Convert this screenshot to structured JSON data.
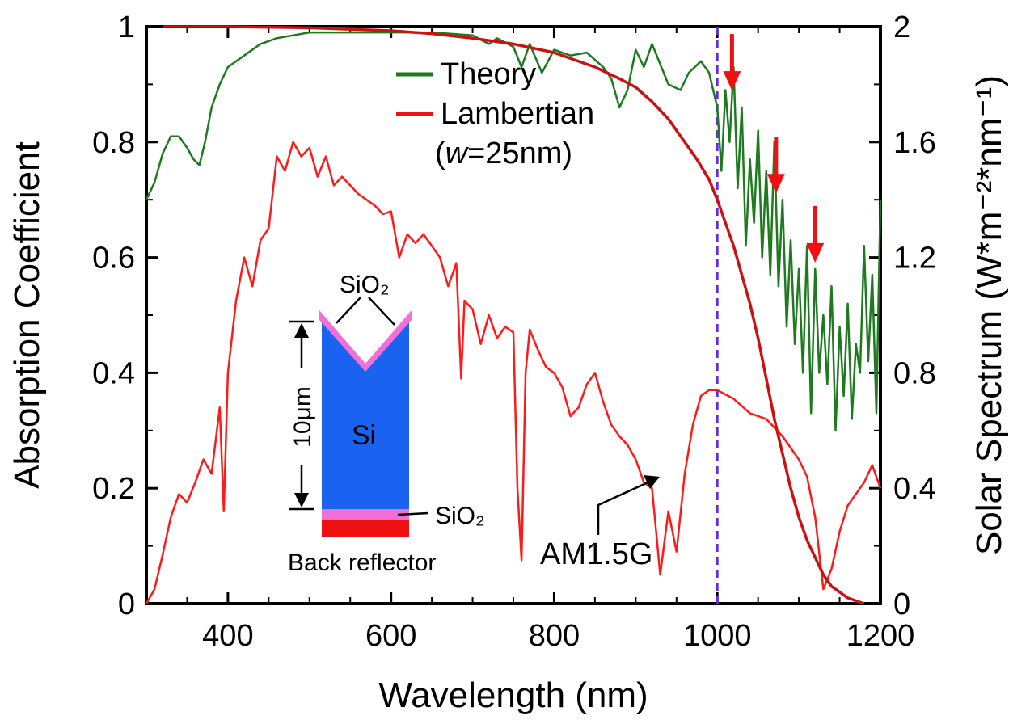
{
  "chart_data": {
    "type": "line",
    "xlabel": "Wavelength (nm)",
    "ylabel_left": "Absorption Coefficient",
    "ylabel_right": "Solar Spectrum (W*m⁻²*nm⁻¹)",
    "xlim": [
      300,
      1200
    ],
    "ylim_left": [
      0,
      1
    ],
    "ylim_right": [
      0,
      2
    ],
    "xticks": [
      "400",
      "600",
      "800",
      "1000",
      "1200"
    ],
    "yticks_left": [
      "0",
      "0.2",
      "0.4",
      "0.6",
      "0.8",
      "1"
    ],
    "yticks_right": [
      "0",
      "0.4",
      "0.8",
      "1.2",
      "1.6",
      "2"
    ],
    "legend": {
      "theory": "Theory",
      "lambertian": "Lambertian",
      "note_w": "w",
      "note_value": "=25nm"
    },
    "series": [
      {
        "name": "Theory",
        "color": "#1e7a1e",
        "axis": "left",
        "points": [
          [
            300,
            0.7
          ],
          [
            310,
            0.73
          ],
          [
            320,
            0.78
          ],
          [
            330,
            0.81
          ],
          [
            340,
            0.81
          ],
          [
            350,
            0.79
          ],
          [
            358,
            0.77
          ],
          [
            365,
            0.76
          ],
          [
            372,
            0.8
          ],
          [
            380,
            0.86
          ],
          [
            390,
            0.9
          ],
          [
            400,
            0.93
          ],
          [
            420,
            0.95
          ],
          [
            440,
            0.97
          ],
          [
            460,
            0.98
          ],
          [
            500,
            0.99
          ],
          [
            550,
            0.99
          ],
          [
            600,
            0.99
          ],
          [
            650,
            0.99
          ],
          [
            700,
            0.985
          ],
          [
            720,
            0.97
          ],
          [
            730,
            0.98
          ],
          [
            750,
            0.965
          ],
          [
            760,
            0.93
          ],
          [
            770,
            0.97
          ],
          [
            785,
            0.92
          ],
          [
            800,
            0.96
          ],
          [
            820,
            0.95
          ],
          [
            840,
            0.955
          ],
          [
            860,
            0.93
          ],
          [
            870,
            0.91
          ],
          [
            880,
            0.86
          ],
          [
            890,
            0.89
          ],
          [
            900,
            0.96
          ],
          [
            910,
            0.93
          ],
          [
            920,
            0.97
          ],
          [
            940,
            0.9
          ],
          [
            955,
            0.89
          ],
          [
            965,
            0.92
          ],
          [
            980,
            0.94
          ],
          [
            990,
            0.92
          ],
          [
            1000,
            0.86
          ],
          [
            1005,
            0.75
          ],
          [
            1010,
            0.89
          ],
          [
            1015,
            0.8
          ],
          [
            1020,
            0.93
          ],
          [
            1025,
            0.72
          ],
          [
            1030,
            0.86
          ],
          [
            1035,
            0.62
          ],
          [
            1040,
            0.77
          ],
          [
            1045,
            0.66
          ],
          [
            1050,
            0.82
          ],
          [
            1055,
            0.6
          ],
          [
            1060,
            0.75
          ],
          [
            1065,
            0.57
          ],
          [
            1070,
            0.8
          ],
          [
            1075,
            0.55
          ],
          [
            1080,
            0.7
          ],
          [
            1085,
            0.48
          ],
          [
            1090,
            0.63
          ],
          [
            1095,
            0.45
          ],
          [
            1100,
            0.58
          ],
          [
            1105,
            0.4
          ],
          [
            1110,
            0.62
          ],
          [
            1115,
            0.33
          ],
          [
            1120,
            0.58
          ],
          [
            1125,
            0.4
          ],
          [
            1130,
            0.5
          ],
          [
            1135,
            0.38
          ],
          [
            1140,
            0.55
          ],
          [
            1145,
            0.3
          ],
          [
            1150,
            0.48
          ],
          [
            1155,
            0.36
          ],
          [
            1160,
            0.52
          ],
          [
            1165,
            0.32
          ],
          [
            1170,
            0.45
          ],
          [
            1175,
            0.4
          ],
          [
            1180,
            0.62
          ],
          [
            1185,
            0.42
          ],
          [
            1190,
            0.57
          ],
          [
            1195,
            0.33
          ],
          [
            1200,
            0.7
          ]
        ]
      },
      {
        "name": "Lambertian",
        "color": "#cc1111",
        "axis": "left",
        "points": [
          [
            320,
            1.0
          ],
          [
            400,
            1.0
          ],
          [
            500,
            0.998
          ],
          [
            600,
            0.993
          ],
          [
            650,
            0.988
          ],
          [
            700,
            0.98
          ],
          [
            750,
            0.97
          ],
          [
            800,
            0.955
          ],
          [
            850,
            0.93
          ],
          [
            880,
            0.91
          ],
          [
            900,
            0.895
          ],
          [
            920,
            0.87
          ],
          [
            940,
            0.84
          ],
          [
            960,
            0.8
          ],
          [
            975,
            0.77
          ],
          [
            990,
            0.735
          ],
          [
            1000,
            0.7
          ],
          [
            1010,
            0.66
          ],
          [
            1020,
            0.62
          ],
          [
            1030,
            0.57
          ],
          [
            1040,
            0.52
          ],
          [
            1050,
            0.46
          ],
          [
            1060,
            0.39
          ],
          [
            1070,
            0.32
          ],
          [
            1080,
            0.26
          ],
          [
            1090,
            0.2
          ],
          [
            1100,
            0.15
          ],
          [
            1110,
            0.11
          ],
          [
            1120,
            0.08
          ],
          [
            1130,
            0.05
          ],
          [
            1140,
            0.03
          ],
          [
            1160,
            0.01
          ],
          [
            1180,
            0.0
          ]
        ]
      },
      {
        "name": "AM1.5G",
        "color": "#ff1a1a",
        "axis": "right",
        "points": [
          [
            300,
            0.0
          ],
          [
            310,
            0.05
          ],
          [
            320,
            0.17
          ],
          [
            330,
            0.3
          ],
          [
            340,
            0.38
          ],
          [
            350,
            0.35
          ],
          [
            360,
            0.42
          ],
          [
            370,
            0.5
          ],
          [
            380,
            0.45
          ],
          [
            390,
            0.68
          ],
          [
            395,
            0.32
          ],
          [
            400,
            0.8
          ],
          [
            410,
            1.05
          ],
          [
            420,
            1.2
          ],
          [
            430,
            1.1
          ],
          [
            440,
            1.26
          ],
          [
            450,
            1.3
          ],
          [
            460,
            1.55
          ],
          [
            470,
            1.5
          ],
          [
            480,
            1.6
          ],
          [
            490,
            1.55
          ],
          [
            500,
            1.58
          ],
          [
            510,
            1.48
          ],
          [
            520,
            1.55
          ],
          [
            530,
            1.45
          ],
          [
            540,
            1.48
          ],
          [
            550,
            1.45
          ],
          [
            560,
            1.42
          ],
          [
            570,
            1.4
          ],
          [
            580,
            1.38
          ],
          [
            590,
            1.35
          ],
          [
            600,
            1.36
          ],
          [
            610,
            1.2
          ],
          [
            620,
            1.28
          ],
          [
            630,
            1.25
          ],
          [
            640,
            1.28
          ],
          [
            650,
            1.24
          ],
          [
            660,
            1.2
          ],
          [
            670,
            1.1
          ],
          [
            680,
            1.18
          ],
          [
            686,
            0.78
          ],
          [
            690,
            1.05
          ],
          [
            700,
            1.02
          ],
          [
            710,
            0.9
          ],
          [
            720,
            1.0
          ],
          [
            730,
            0.92
          ],
          [
            740,
            0.96
          ],
          [
            750,
            0.94
          ],
          [
            755,
            0.4
          ],
          [
            760,
            0.15
          ],
          [
            765,
            0.8
          ],
          [
            770,
            0.95
          ],
          [
            780,
            0.88
          ],
          [
            790,
            0.82
          ],
          [
            800,
            0.8
          ],
          [
            810,
            0.75
          ],
          [
            820,
            0.65
          ],
          [
            830,
            0.68
          ],
          [
            840,
            0.76
          ],
          [
            850,
            0.8
          ],
          [
            860,
            0.7
          ],
          [
            870,
            0.62
          ],
          [
            880,
            0.58
          ],
          [
            890,
            0.55
          ],
          [
            900,
            0.5
          ],
          [
            910,
            0.42
          ],
          [
            920,
            0.4
          ],
          [
            930,
            0.1
          ],
          [
            940,
            0.32
          ],
          [
            950,
            0.18
          ],
          [
            960,
            0.45
          ],
          [
            970,
            0.62
          ],
          [
            980,
            0.72
          ],
          [
            990,
            0.74
          ],
          [
            1000,
            0.74
          ],
          [
            1020,
            0.71
          ],
          [
            1040,
            0.66
          ],
          [
            1060,
            0.64
          ],
          [
            1080,
            0.58
          ],
          [
            1100,
            0.5
          ],
          [
            1110,
            0.44
          ],
          [
            1120,
            0.3
          ],
          [
            1130,
            0.05
          ],
          [
            1140,
            0.12
          ],
          [
            1150,
            0.25
          ],
          [
            1160,
            0.34
          ],
          [
            1170,
            0.38
          ],
          [
            1180,
            0.42
          ],
          [
            1190,
            0.48
          ],
          [
            1200,
            0.4
          ]
        ]
      }
    ],
    "annotations": {
      "cutoff_wavelength": 1000,
      "cutoff_color": "#6a2bd9",
      "peak_arrows_nm": [
        1018,
        1072,
        1120
      ],
      "peak_arrow_color": "#ee1111",
      "am15g_label": "AM1.5G"
    },
    "inset": {
      "top_label": "SiO₂",
      "body_label": "Si",
      "thickness_label": "10μm",
      "side_label": "SiO₂",
      "bottom_label": "Back reflector",
      "si_color": "#1a63f0",
      "oxide_color": "#f070d8",
      "reflector_color": "#ee1111"
    }
  }
}
